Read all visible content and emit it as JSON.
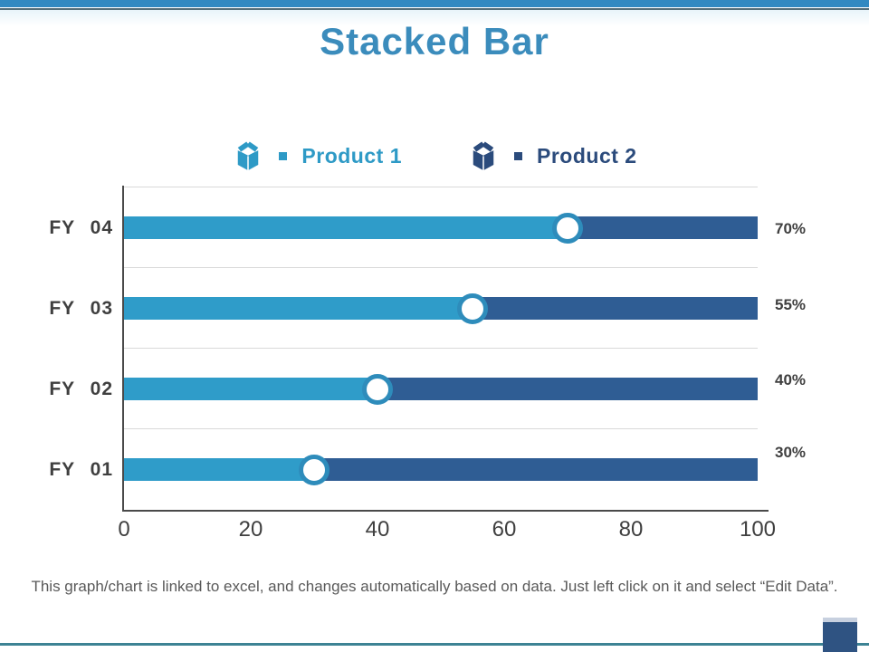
{
  "slide": {
    "title": "Stacked Bar",
    "footer": "This graph/chart is linked to excel, and changes automatically based on data. Just left click on it and select “Edit Data”."
  },
  "legend": {
    "items": [
      {
        "label": "Product 1",
        "color": "#2E9AC6",
        "icon": "open-box-icon"
      },
      {
        "label": "Product 2",
        "color": "#2B4B7C",
        "icon": "open-box-icon"
      }
    ]
  },
  "chart_data": {
    "type": "bar",
    "orientation": "horizontal",
    "stacked": true,
    "title": "Stacked Bar",
    "categories": [
      "FY 04",
      "FY 03",
      "FY 02",
      "FY 01"
    ],
    "series": [
      {
        "name": "Product 1",
        "values": [
          70,
          55,
          40,
          30
        ],
        "color": "#2F9CC9"
      },
      {
        "name": "Product 2",
        "values": [
          30,
          45,
          60,
          70
        ],
        "color": "#2F5D94"
      }
    ],
    "value_labels": [
      "70%",
      "55%",
      "40%",
      "30%"
    ],
    "x_ticks": [
      0,
      20,
      40,
      60,
      80,
      100
    ],
    "xlim": [
      0,
      100
    ],
    "grid": "light horizontal separators between category rows",
    "legend_position": "top-center",
    "marker": {
      "shape": "circle",
      "fill": "#FFFFFF",
      "ring_color": "#2E8CBB",
      "position": "at series boundary"
    }
  },
  "colors": {
    "title_text": "#3B8CBC",
    "bar_teal": "#2F9CC9",
    "bar_navy": "#2F5D94",
    "axis_text": "#3F3F3F",
    "gridline": "#D9D9D9",
    "top_bar": "#3189C1",
    "bottom_line": "#3D8394",
    "corner_square": "#2F5382",
    "footer_text": "#595959"
  }
}
